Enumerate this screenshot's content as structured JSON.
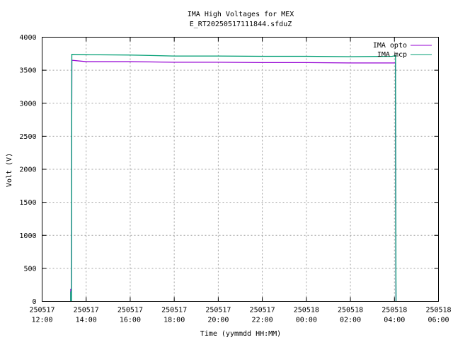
{
  "chart_data": {
    "type": "line",
    "title": "IMA High Voltages for MEX",
    "subtitle": "E_RT20250517111844.sfduZ",
    "xlabel": "Time (yymmdd HH:MM)",
    "ylabel": "Volt (V)",
    "x_unit": "hours",
    "xlim": [
      12,
      30
    ],
    "ylim": [
      0,
      4000
    ],
    "x_ticks": [
      {
        "value": 12,
        "date": "250517",
        "time": "12:00"
      },
      {
        "value": 14,
        "date": "250517",
        "time": "14:00"
      },
      {
        "value": 16,
        "date": "250517",
        "time": "16:00"
      },
      {
        "value": 18,
        "date": "250517",
        "time": "18:00"
      },
      {
        "value": 20,
        "date": "250517",
        "time": "20:00"
      },
      {
        "value": 22,
        "date": "250517",
        "time": "22:00"
      },
      {
        "value": 24,
        "date": "250518",
        "time": "00:00"
      },
      {
        "value": 26,
        "date": "250518",
        "time": "02:00"
      },
      {
        "value": 28,
        "date": "250518",
        "time": "04:00"
      },
      {
        "value": 30,
        "date": "250518",
        "time": "06:00"
      }
    ],
    "y_ticks": [
      0,
      500,
      1000,
      1500,
      2000,
      2500,
      3000,
      3500,
      4000
    ],
    "grid": true,
    "legend_position": "top-right",
    "series": [
      {
        "name": "IMA opto",
        "color": "#9400d3",
        "x": [
          13.3,
          13.3,
          13.33,
          13.35,
          14,
          16,
          18,
          20,
          22,
          24,
          26,
          27.9,
          28.05,
          28.06,
          28.07
        ],
        "y": [
          0,
          190,
          0,
          3650,
          3630,
          3630,
          3620,
          3620,
          3615,
          3615,
          3610,
          3610,
          3610,
          1000,
          0
        ]
      },
      {
        "name": "IMA mcp",
        "color": "#009e73",
        "x": [
          13.3,
          13.3,
          13.33,
          13.35,
          14,
          16,
          18,
          20,
          22,
          24,
          26,
          27.9,
          28.05,
          28.06,
          28.07
        ],
        "y": [
          0,
          150,
          0,
          3740,
          3735,
          3730,
          3715,
          3715,
          3710,
          3710,
          3705,
          3710,
          3720,
          1200,
          0
        ]
      }
    ]
  }
}
